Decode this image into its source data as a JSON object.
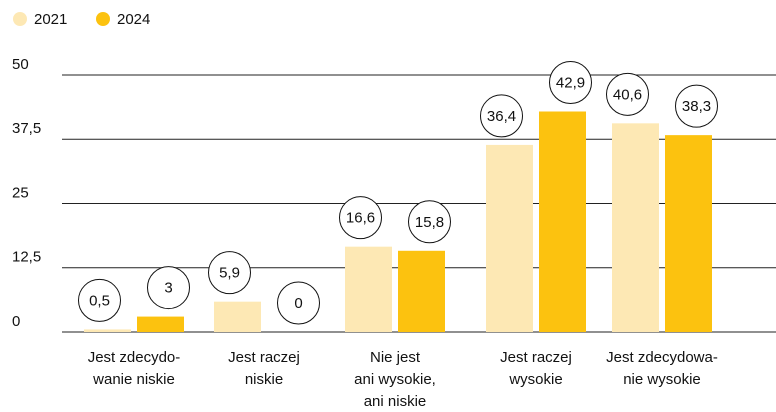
{
  "chart_data": {
    "type": "bar",
    "categories": [
      [
        "Jest zdecydo-",
        "wanie niskie"
      ],
      [
        "Jest raczej",
        "niskie"
      ],
      [
        "Nie jest",
        "ani wysokie,",
        "ani niskie"
      ],
      [
        "Jest raczej",
        "wysokie"
      ],
      [
        "Jest zdecydowa-",
        "nie wysokie"
      ]
    ],
    "series": [
      {
        "name": "2021",
        "color": "#fde8b4",
        "values": [
          0.5,
          5.9,
          16.6,
          36.4,
          40.6
        ],
        "value_labels": [
          "0,5",
          "5,9",
          "16,6",
          "36,4",
          "40,6"
        ]
      },
      {
        "name": "2024",
        "color": "#fcc20f",
        "values": [
          3,
          0,
          15.8,
          42.9,
          38.3
        ],
        "value_labels": [
          "3",
          "0",
          "15,8",
          "42,9",
          "38,3"
        ]
      }
    ],
    "ylim": [
      0,
      50
    ],
    "yticks": [
      0,
      {
        "value": 12.5,
        "label": "12,5"
      },
      25,
      {
        "value": 37.5,
        "label": "37,5"
      },
      50
    ],
    "grid": true,
    "legend": "top-left"
  }
}
